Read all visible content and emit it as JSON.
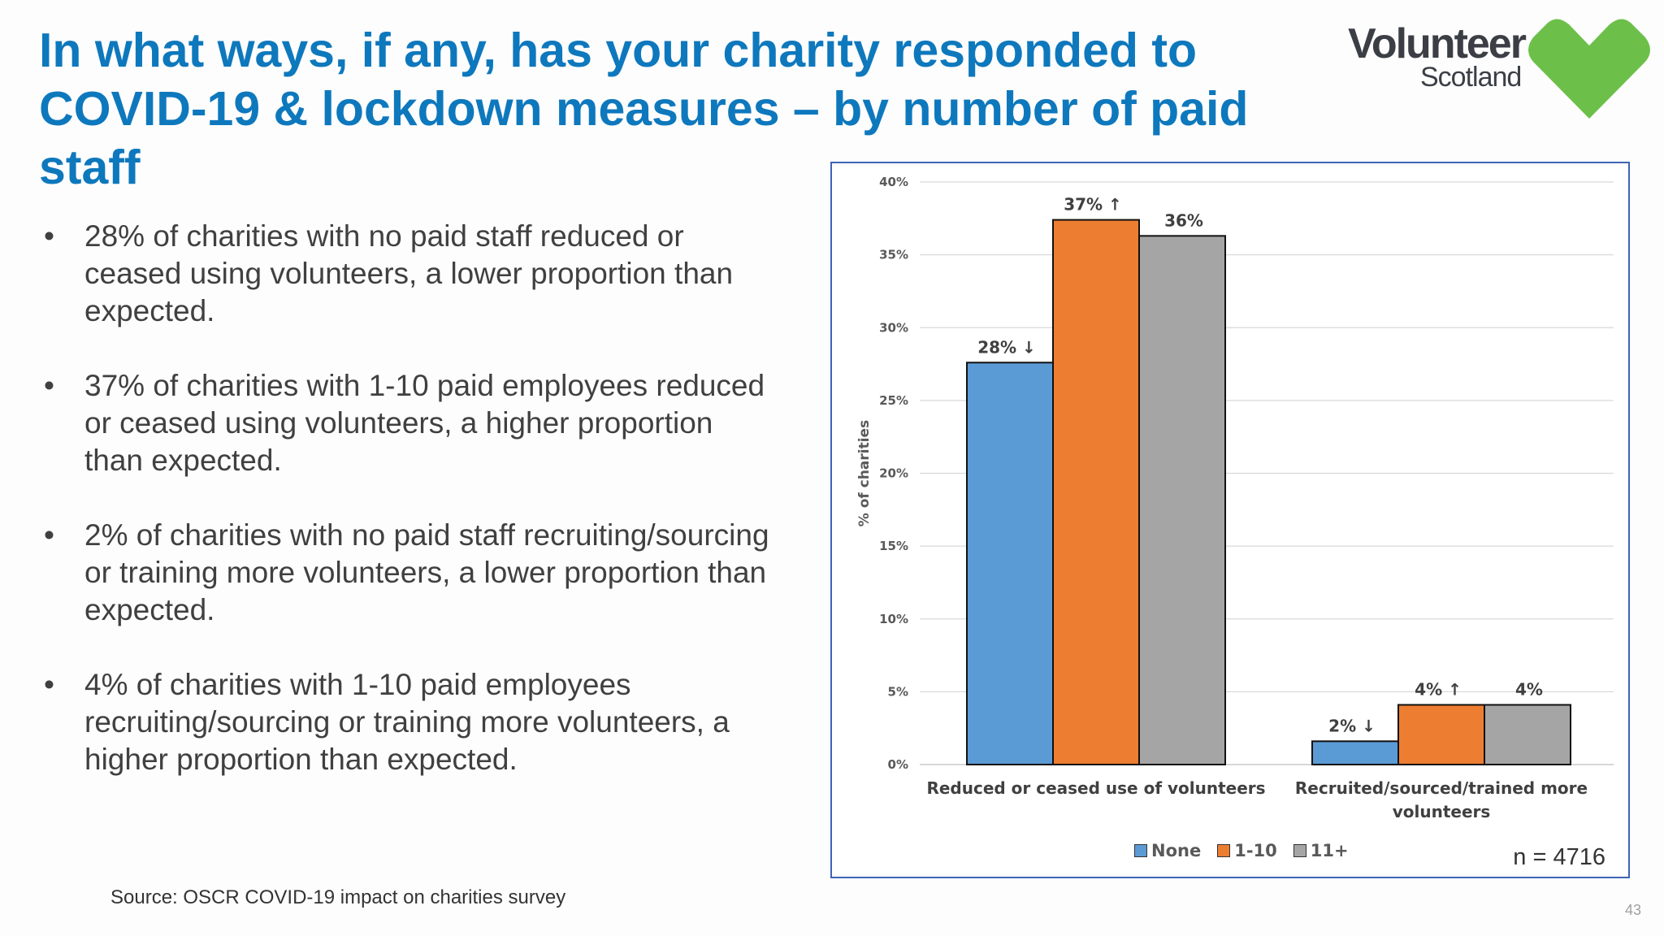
{
  "slide": {
    "title": "In what ways, if any, has your charity responded to COVID-19 & lockdown measures – by number of paid staff",
    "bullets": [
      "28% of charities with no paid staff reduced or ceased using volunteers, a lower proportion than expected.",
      "37% of charities with 1-10 paid employees reduced or ceased using volunteers, a higher proportion than expected.",
      "2% of charities with no paid staff recruiting/sourcing or training more volunteers, a lower proportion than expected.",
      "4% of charities with 1-10 paid employees  recruiting/sourcing or training more volunteers, a higher proportion than expected."
    ],
    "bullet_glyph": "•",
    "source": "Source: OSCR COVID-19 impact on charities survey",
    "page_number": "43"
  },
  "logo": {
    "line1": "Volunteer",
    "line2": "Scotland",
    "icon": "heart-icon",
    "heart_color": "#6cc04a",
    "text_color": "#3b3f45"
  },
  "colors": {
    "title": "#0e78bd",
    "frame": "#3e64b4"
  },
  "chart_data": {
    "type": "bar",
    "ylabel": "% of charities",
    "xlabel": "",
    "ylim": [
      0,
      40
    ],
    "yticks": [
      "0%",
      "5%",
      "10%",
      "15%",
      "20%",
      "25%",
      "30%",
      "35%",
      "40%"
    ],
    "grid": true,
    "legend_position": "bottom",
    "categories": [
      [
        "Reduced or ceased use of volunteers"
      ],
      [
        "Recruited/sourced/trained more",
        "volunteers"
      ]
    ],
    "series": [
      {
        "name": "None",
        "color": "#5b9bd5",
        "values": [
          27.6,
          1.6
        ],
        "labels": [
          "28% ↓",
          "2% ↓"
        ]
      },
      {
        "name": "1-10",
        "color": "#ed7d31",
        "values": [
          37.4,
          4.1
        ],
        "labels": [
          "37% ↑",
          "4% ↑"
        ]
      },
      {
        "name": "11+",
        "color": "#a5a5a5",
        "values": [
          36.3,
          4.1
        ],
        "labels": [
          "36%",
          "4%"
        ]
      }
    ],
    "annotation": "n = 4716"
  }
}
